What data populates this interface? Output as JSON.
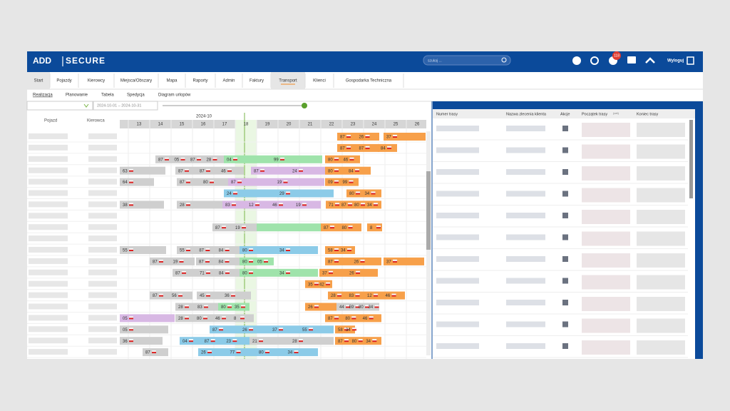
{
  "header": {
    "logo_left": "ADD",
    "logo_right": "SECURE",
    "search_placeholder": "szukaj ...",
    "notification_count": "118",
    "logout": "Wyloguj"
  },
  "nav": {
    "tabs": [
      "Start",
      "Pojazdy",
      "Kierowcy",
      "Miejsca/Obszary",
      "Mapa",
      "Raporty",
      "Admin",
      "Faktury",
      "Transport",
      "Klienci",
      "Gospodarka Techniczna"
    ]
  },
  "subnav": {
    "tabs": [
      "Realizacja",
      "Planowanie",
      "Tabela",
      "Spedycja",
      "Diagram urlopów"
    ]
  },
  "toolbar": {
    "date_range": "2024-10-01 – 2024-10-31"
  },
  "gantt": {
    "columns": [
      "Pojazd",
      "Kierowca"
    ],
    "month": "2024-10",
    "days": [
      "13",
      "14",
      "15",
      "16",
      "17",
      "18",
      "19",
      "20",
      "21",
      "22",
      "23",
      "24",
      "25",
      "26"
    ],
    "rows": [
      {
        "bars": [
          {
            "labels": [
              "87",
              "26"
            ]
          },
          {
            "labels": [
              "37"
            ]
          }
        ]
      },
      {
        "bars": [
          {
            "labels": [
              "87",
              "87"
            ]
          },
          {
            "labels": [
              "84"
            ]
          }
        ]
      },
      {
        "bars": [
          {
            "labels": [
              "87",
              "05",
              "87",
              "28"
            ]
          },
          {
            "labels": [
              "04",
              "99"
            ]
          },
          {
            "labels": [
              "80",
              "46"
            ]
          }
        ]
      },
      {
        "bars": [
          {
            "labels": [
              "63"
            ]
          },
          {
            "labels": [
              "87",
              "87",
              "46"
            ]
          },
          {
            "labels": [
              "87",
              "24"
            ]
          },
          {
            "labels": [
              "80",
              "84"
            ]
          }
        ]
      },
      {
        "bars": [
          {
            "labels": [
              "64"
            ]
          },
          {
            "labels": [
              "87",
              "80"
            ]
          },
          {
            "labels": [
              "87",
              "19"
            ]
          },
          {
            "labels": [
              "09",
              "99"
            ]
          }
        ]
      },
      {
        "bars": [
          {
            "labels": [
              "24",
              "29"
            ]
          },
          {
            "labels": [
              "80",
              "34"
            ]
          }
        ]
      },
      {
        "bars": [
          {
            "labels": [
              "38"
            ]
          },
          {
            "labels": [
              "28"
            ]
          },
          {
            "labels": [
              "83",
              "12",
              "46",
              "19"
            ]
          },
          {
            "labels": [
              "71",
              "87",
              "80",
              "34"
            ]
          }
        ]
      },
      {
        "bars": []
      },
      {
        "bars": [
          {
            "labels": [
              "87",
              "19"
            ]
          },
          {
            "labels": []
          },
          {
            "labels": [
              "87",
              "80"
            ]
          },
          {
            "labels": [
              "8"
            ]
          }
        ]
      },
      {
        "bars": []
      },
      {
        "bars": [
          {
            "labels": [
              "55"
            ]
          },
          {
            "labels": [
              "55",
              "87",
              "84"
            ]
          },
          {
            "labels": [
              "80",
              "34"
            ]
          },
          {
            "labels": [
              "58",
              "34"
            ]
          }
        ]
      },
      {
        "bars": [
          {
            "labels": [
              "87",
              "19"
            ]
          },
          {
            "labels": [
              "87",
              "84"
            ]
          },
          {
            "labels": [
              "80",
              "05"
            ]
          },
          {
            "labels": [
              "87",
              "26"
            ]
          },
          {
            "labels": [
              "37"
            ]
          }
        ]
      },
      {
        "bars": [
          {
            "labels": [
              "87"
            ]
          },
          {
            "labels": [
              "71",
              "84"
            ]
          },
          {
            "labels": [
              "80",
              "34"
            ]
          },
          {
            "labels": [
              "37",
              "26"
            ]
          }
        ]
      },
      {
        "bars": [
          {
            "labels": [
              "35",
              "42"
            ]
          }
        ]
      },
      {
        "bars": [
          {
            "labels": [
              "87",
              "56"
            ]
          },
          {
            "labels": [
              "45",
              "36"
            ]
          },
          {
            "labels": [
              "28",
              "83",
              "12",
              "46"
            ]
          }
        ]
      },
      {
        "bars": [
          {
            "labels": [
              "28",
              "83"
            ]
          },
          {
            "labels": [
              "80",
              "35"
            ]
          },
          {
            "labels": [
              "26"
            ]
          },
          {
            "labels": [
              "44",
              "59",
              "80",
              "34"
            ]
          }
        ]
      },
      {
        "bars": [
          {
            "labels": [
              "05"
            ]
          },
          {
            "labels": [
              "28",
              "80",
              "46",
              "8"
            ]
          },
          {
            "labels": [
              "87",
              "80",
              "46"
            ]
          }
        ]
      },
      {
        "bars": [
          {
            "labels": [
              "05"
            ]
          },
          {
            "labels": [
              "87",
              "26",
              "37",
              "55"
            ]
          },
          {
            "labels": [
              "58",
              "34"
            ]
          }
        ]
      },
      {
        "bars": [
          {
            "labels": [
              "36"
            ]
          },
          {
            "labels": [
              "04",
              "87",
              "23"
            ]
          },
          {
            "labels": [
              "21",
              "28"
            ]
          },
          {
            "labels": [
              "87",
              "80",
              "34"
            ]
          }
        ]
      },
      {
        "bars": [
          {
            "labels": [
              "87"
            ]
          },
          {
            "labels": [
              "26",
              "77",
              "80",
              "34"
            ]
          }
        ]
      }
    ]
  },
  "table": {
    "columns": [
      "Numer trasy",
      "Nazwa zlecenia klienta",
      "Akcje",
      "Początek trasy",
      "Koniec trasy"
    ],
    "timezone": "(cet)"
  }
}
